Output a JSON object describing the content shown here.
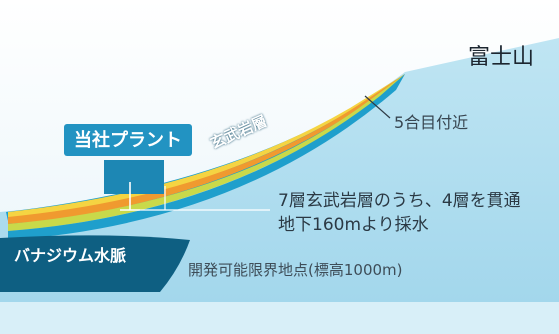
{
  "labels": {
    "mountain": "富士山",
    "fifth_station": "5合目付近",
    "plant": "当社プラント",
    "basalt_layer": "玄武岩層",
    "description_line1": "7層玄武岩層のうち、4層を貫通",
    "description_line2": "地下160mより採水",
    "vanadium_vein": "バナジウム水脈",
    "development_limit": "開発可能限界地点(標高1000m)"
  },
  "colors": {
    "sky": "#eef7fb",
    "lower_band": "#cfeaf6",
    "ground": "#a9dcef",
    "basalt_band": "#1f9fcc",
    "yellow_band": "#f5d442",
    "orange_band": "#f09a2f",
    "green_band": "#c9d94a",
    "vanadium": "#0e5f82",
    "plant": "#1d87b4",
    "plant_label_bg": "#2293c2",
    "leader_line": "#ffffff"
  },
  "icons": {
    "plant_building": "building-icon"
  }
}
